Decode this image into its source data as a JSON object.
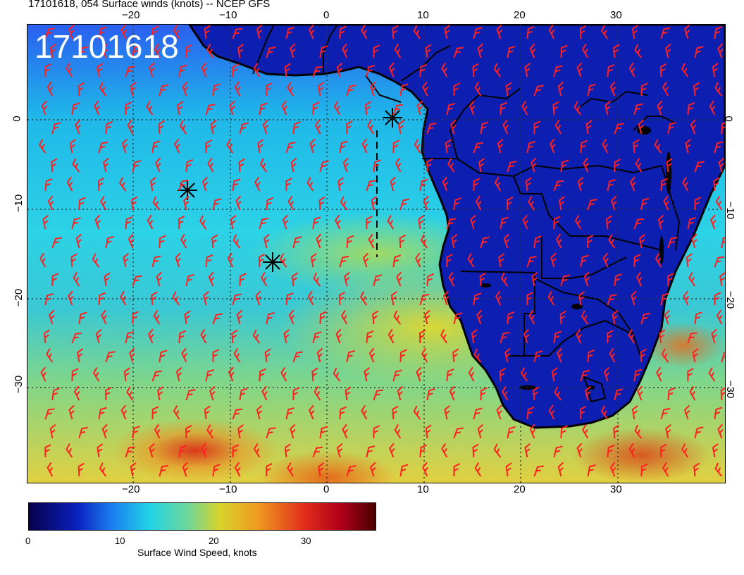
{
  "header": {
    "title": "17101618, 054 Surface winds (knots) -- NCEP GFS"
  },
  "map": {
    "timestamp_label": "17101618",
    "lon_ticks": [
      "−20",
      "−10",
      "0",
      "10",
      "20",
      "30"
    ],
    "lat_ticks": [
      "0",
      "−10",
      "−20",
      "−30"
    ],
    "barb_color": "#ff2020",
    "land_color": "#0d1fb0",
    "markers": [
      "star-marker-1",
      "star-marker-2",
      "star-marker-3"
    ]
  },
  "colorbar": {
    "ticks": [
      "0",
      "10",
      "20",
      "30"
    ],
    "title": "Surface Wind Speed, knots",
    "colors": [
      "#08004a",
      "#0a20c0",
      "#22d4e6",
      "#d6d42a",
      "#f09a20",
      "#e02a1a",
      "#4a0000"
    ]
  }
}
